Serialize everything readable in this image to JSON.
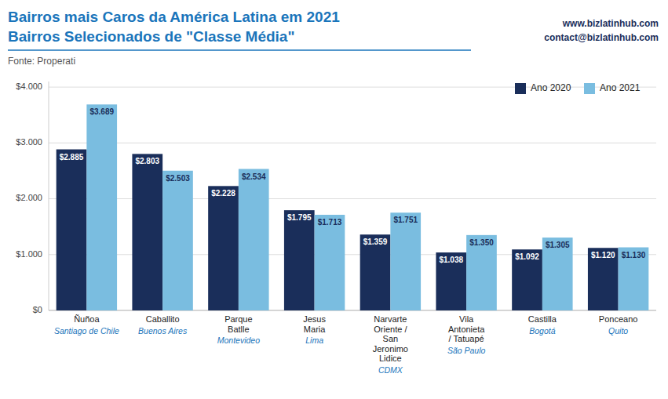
{
  "chart_data": {
    "type": "bar",
    "title": "Bairros mais Caros da América Latina em 2021",
    "subtitle": "Bairros Selecionados de \"Classe Média\"",
    "annotations": [
      "Fonte: Properati",
      "www.bizlatinhub.com",
      "contact@bizlatinhub.com"
    ],
    "categories": [
      "Ñuñoa",
      "Caballito",
      "Parque\nBatlle",
      "Jesus\nMaria",
      "Narvarte\nOriente /\nSan\nJeronimo\nLidice",
      "Vila\nAntonieta\n/ Tatuapé",
      "Castilla",
      "Ponceano"
    ],
    "subcategories": [
      "Santiago de Chile",
      "Buenos Aires",
      "Montevideo",
      "Lima",
      "CDMX",
      "São Paulo",
      "Bogotá",
      "Quito"
    ],
    "series": [
      {
        "name": "Ano 2020",
        "color": "#1a2e5a",
        "values": [
          2885,
          2803,
          2228,
          1795,
          1359,
          1038,
          1092,
          1120
        ],
        "value_labels": [
          "$2.885",
          "$2.803",
          "$2.228",
          "$1.795",
          "$1.359",
          "$1.038",
          "$1.092",
          "$1.120"
        ]
      },
      {
        "name": "Ano 2021",
        "color": "#7abde0",
        "values": [
          3689,
          2503,
          2534,
          1713,
          1751,
          1350,
          1305,
          1130
        ],
        "value_labels": [
          "$3.689",
          "$2.503",
          "$2.534",
          "$1.713",
          "$1.751",
          "$1.350",
          "$1.305",
          "$1.130"
        ]
      }
    ],
    "ylim": [
      0,
      4100
    ],
    "yticks": [
      {
        "value": 0,
        "label": "$0"
      },
      {
        "value": 1000,
        "label": "$1.000"
      },
      {
        "value": 2000,
        "label": "$2.000"
      },
      {
        "value": 3000,
        "label": "$3.000"
      },
      {
        "value": 4000,
        "label": "$4.000"
      }
    ],
    "grid": true,
    "legend": "upper right",
    "data_labels": true
  }
}
